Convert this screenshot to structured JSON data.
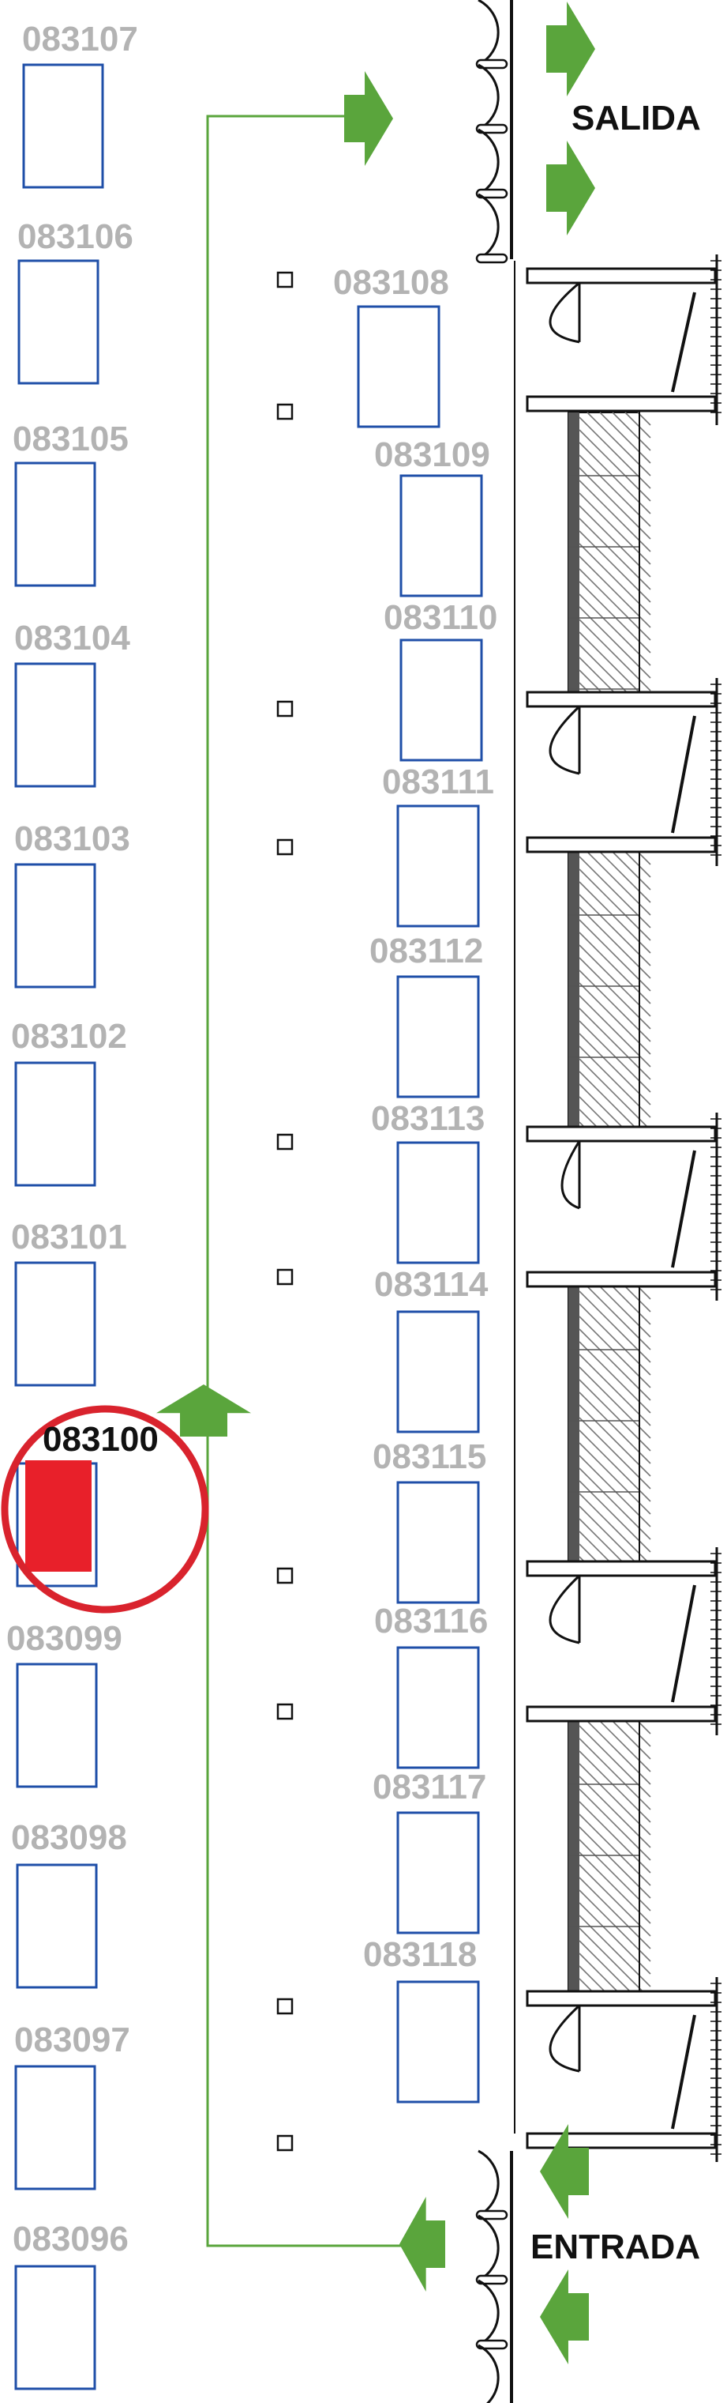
{
  "colors": {
    "slot_border": "#1f4fa8",
    "label_gray": "#b3b3b3",
    "selected_fill": "#e8202a",
    "highlight_ring": "#d9232d",
    "arrow_green": "#5aa53c",
    "route_line": "#5aa53c",
    "wall": "#111111"
  },
  "signs": {
    "exit": "SALIDA",
    "entrance": "ENTRADA"
  },
  "selected_slot": "083100",
  "left_column": [
    {
      "id": "083107"
    },
    {
      "id": "083106"
    },
    {
      "id": "083105"
    },
    {
      "id": "083104"
    },
    {
      "id": "083103"
    },
    {
      "id": "083102"
    },
    {
      "id": "083101"
    },
    {
      "id": "083100",
      "selected": true
    },
    {
      "id": "083099"
    },
    {
      "id": "083098"
    },
    {
      "id": "083097"
    },
    {
      "id": "083096"
    }
  ],
  "right_column": [
    {
      "id": "083108"
    },
    {
      "id": "083109"
    },
    {
      "id": "083110"
    },
    {
      "id": "083111"
    },
    {
      "id": "083112"
    },
    {
      "id": "083113"
    },
    {
      "id": "083114"
    },
    {
      "id": "083115"
    },
    {
      "id": "083116"
    },
    {
      "id": "083117"
    },
    {
      "id": "083118"
    }
  ],
  "icons": {
    "route_arrow": "green-direction-arrow-icon",
    "door": "door-swing-icon",
    "turnstile": "turnstile-icon",
    "pillar": "column-marker-icon"
  }
}
